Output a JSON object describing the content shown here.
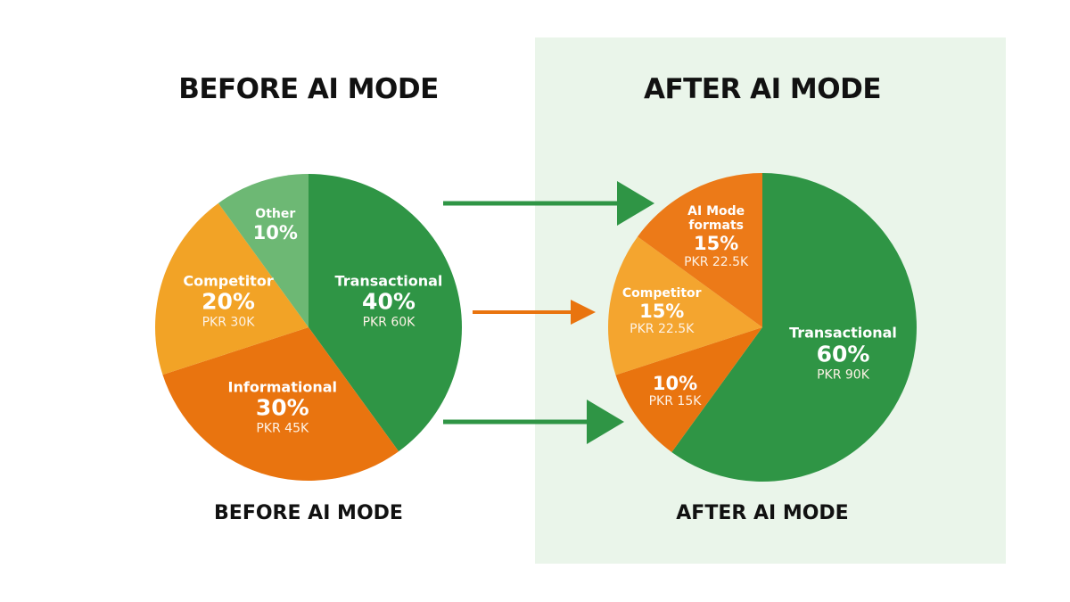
{
  "chart_data": [
    {
      "type": "pie",
      "title": "BEFORE AI MODE",
      "caption": "BEFORE AI MODE",
      "categories": [
        "Transactional",
        "Informational",
        "Competitor",
        "Other"
      ],
      "values": [
        40,
        30,
        20,
        10
      ],
      "value_labels": [
        "40%",
        "30%",
        "20%",
        "10%"
      ],
      "amount_labels": [
        "PKR 60K",
        "PKR 45K",
        "PKR 30K",
        null
      ],
      "colors": [
        "#2f9545",
        "#e9740f",
        "#f2a326",
        "#6db874"
      ]
    },
    {
      "type": "pie",
      "title": "AFTER AI MODE",
      "caption": "AFTER AI MODE",
      "categories": [
        "Transactional",
        null,
        "Competitor",
        "AI Mode formats"
      ],
      "values": [
        60,
        10,
        15,
        15
      ],
      "value_labels": [
        "60%",
        "10%",
        "15%",
        "15%"
      ],
      "amount_labels": [
        "PKR 90K",
        "PKR 15K",
        "PKR 22.5K",
        "PKR 22.5K"
      ],
      "colors": [
        "#2f9545",
        "#e9740f",
        "#f4a52f",
        "#ec7a18"
      ]
    }
  ]
}
